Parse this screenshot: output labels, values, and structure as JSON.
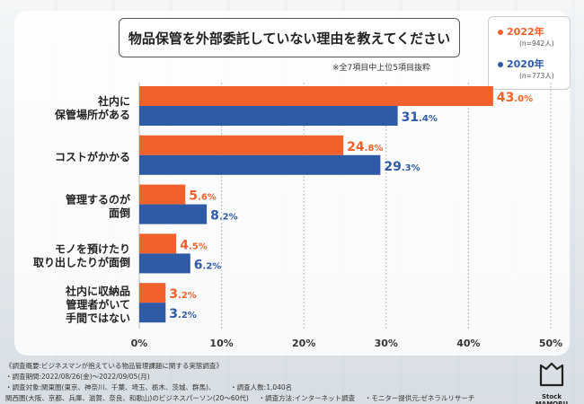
{
  "title": "物品保管を外部委託していない理由を教えてください",
  "subnote": "※全7項目中上位5項目抜粋",
  "legend": [
    {
      "label": "2022年",
      "sub": "(n=942人)",
      "color": "#f2602b"
    },
    {
      "label": "2020年",
      "sub": "(n=773人)",
      "color": "#2f5aa6"
    }
  ],
  "chart_data": {
    "type": "bar",
    "orientation": "horizontal",
    "categories": [
      [
        "社内に",
        "保管場所がある"
      ],
      [
        "コストがかかる"
      ],
      [
        "管理するのが",
        "面倒"
      ],
      [
        "モノを預けたり",
        "取り出したりが面倒"
      ],
      [
        "社内に収納品",
        "管理者がいて",
        "手間ではない"
      ]
    ],
    "series": [
      {
        "name": "2022年",
        "values": [
          43.0,
          24.8,
          5.6,
          4.5,
          3.2
        ],
        "labels": [
          "43.0",
          "24.8",
          "5.6",
          "4.5",
          "3.2"
        ]
      },
      {
        "name": "2020年",
        "values": [
          31.4,
          29.3,
          8.2,
          6.2,
          3.2
        ],
        "labels": [
          "31.4",
          "29.3",
          "8.2",
          "6.2",
          "3.2"
        ]
      }
    ],
    "unit": "%",
    "xlim": [
      0,
      50
    ],
    "xticks": [
      "0%",
      "10%",
      "20%",
      "30%",
      "40%",
      "50%"
    ],
    "colors": [
      "#f2602b",
      "#2f5aa6"
    ]
  },
  "footer": {
    "line1": "《調査概要:ビジネスマンが抱えている物品管理課題に関する実態調査》",
    "line2": "・調査期間:2022/08/26(金)〜2022/09/05(月)",
    "line3a": "・調査対象:関東圏(東京、神奈川、千葉、埼玉、栃木、茨城、群馬)、",
    "line3b": "・調査人数:1,040名",
    "line4a": "関西圏(大阪、京都、兵庫、滋賀、奈良、和歌山)のビジネスパーソン(20〜60代)",
    "line4b": "・調査方法:インターネット調査",
    "line4c": "・モニター提供元:ゼネラルリサーチ"
  },
  "logo_text": "Stock MAMORU"
}
